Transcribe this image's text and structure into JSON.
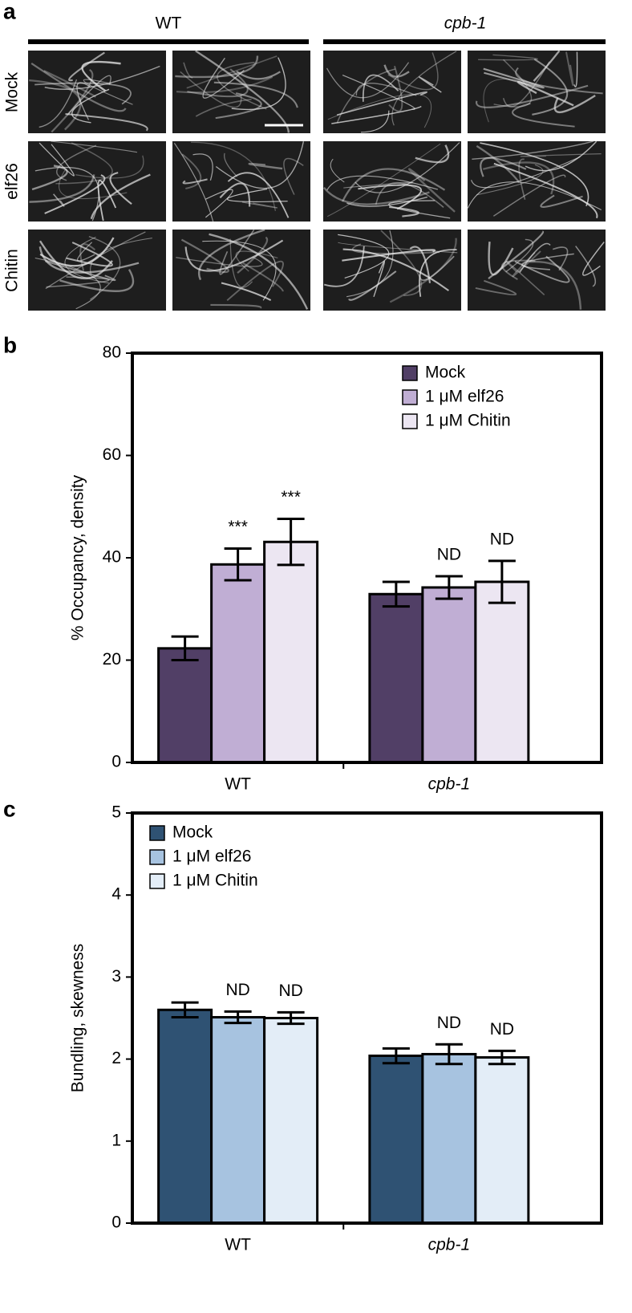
{
  "panel_a": {
    "panel": "a",
    "columns": [
      "WT",
      "cpb-1"
    ],
    "rows": [
      "Mock",
      "elf26",
      "Chitin"
    ]
  },
  "chart_data": [
    {
      "type": "bar",
      "panel": "b",
      "y_label": "% Occupancy, density",
      "categories": [
        "WT",
        "cpb-1"
      ],
      "series": [
        {
          "name": "Mock",
          "color": "#513f66",
          "values": [
            22.3,
            32.9
          ],
          "errors": [
            2.3,
            2.4
          ],
          "annotations": [
            null,
            null
          ]
        },
        {
          "name": "1 μM elf26",
          "color": "#c0aed4",
          "values": [
            38.7,
            34.2
          ],
          "errors": [
            3.1,
            2.2
          ],
          "annotations": [
            "***",
            "ND"
          ]
        },
        {
          "name": "1 μM Chitin",
          "color": "#ece6f2",
          "values": [
            43.1,
            35.3
          ],
          "errors": [
            4.5,
            4.1
          ],
          "annotations": [
            "***",
            "ND"
          ]
        }
      ],
      "ylim": [
        0,
        80
      ],
      "yticks": [
        0,
        20,
        40,
        60,
        80
      ],
      "legend": "upper right"
    },
    {
      "type": "bar",
      "panel": "c",
      "y_label": "Bundling, skewness",
      "categories": [
        "WT",
        "cpb-1"
      ],
      "series": [
        {
          "name": "Mock",
          "color": "#2f5273",
          "values": [
            2.6,
            2.04
          ],
          "errors": [
            0.09,
            0.09
          ],
          "annotations": [
            null,
            null
          ]
        },
        {
          "name": "1 μM elf26",
          "color": "#a7c3e0",
          "values": [
            2.51,
            2.06
          ],
          "errors": [
            0.07,
            0.12
          ],
          "annotations": [
            "ND",
            "ND"
          ]
        },
        {
          "name": "1 μM Chitin",
          "color": "#e3edf7",
          "values": [
            2.5,
            2.02
          ],
          "errors": [
            0.07,
            0.08
          ],
          "annotations": [
            "ND",
            "ND"
          ]
        }
      ],
      "ylim": [
        0,
        5
      ],
      "yticks": [
        0,
        1,
        2,
        3,
        4,
        5
      ],
      "legend": "upper left"
    }
  ]
}
